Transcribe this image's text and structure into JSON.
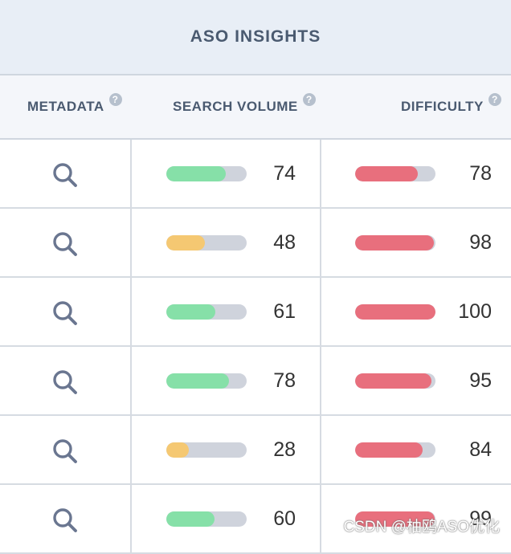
{
  "header": {
    "title": "ASO INSIGHTS"
  },
  "columns": [
    {
      "label": "METADATA",
      "help": "?"
    },
    {
      "label": "SEARCH VOLUME",
      "help": "?"
    },
    {
      "label": "DIFFICULTY",
      "help": "?"
    }
  ],
  "colors": {
    "volume_high": "#86e0a8",
    "volume_low": "#f5c872",
    "difficulty": "#e86f7d",
    "track": "#cfd3dc",
    "search_icon": "#6a7690"
  },
  "rows": [
    {
      "metadata_icon": "search-icon",
      "search_volume": 74,
      "difficulty": 78
    },
    {
      "metadata_icon": "search-icon",
      "search_volume": 48,
      "difficulty": 98
    },
    {
      "metadata_icon": "search-icon",
      "search_volume": 61,
      "difficulty": 100
    },
    {
      "metadata_icon": "search-icon",
      "search_volume": 78,
      "difficulty": 95
    },
    {
      "metadata_icon": "search-icon",
      "search_volume": 28,
      "difficulty": 84
    },
    {
      "metadata_icon": "search-icon",
      "search_volume": 60,
      "difficulty": 99
    }
  ],
  "watermark": "CSDN @柚鸥ASO优化"
}
